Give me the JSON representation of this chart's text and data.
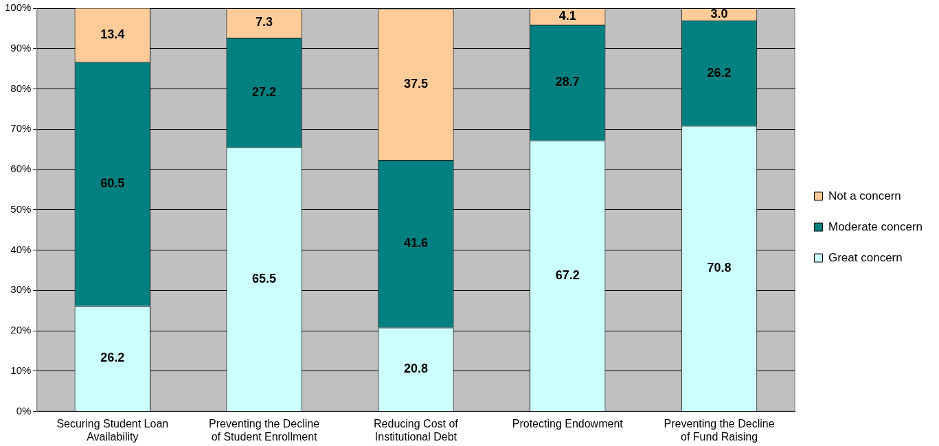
{
  "chart_data": {
    "type": "bar",
    "stacked": true,
    "categories": [
      "Securing Student Loan Availability",
      "Preventing the Decline of Student Enrollment",
      "Reducing Cost of Institutional Debt",
      "Protecting Endowment",
      "Preventing the Decline of Fund Raising"
    ],
    "series": [
      {
        "name": "Great concern",
        "color": "#ccffff",
        "values": [
          26.2,
          65.5,
          20.8,
          67.2,
          70.8
        ],
        "value_labels": [
          "26.2",
          "65.5",
          "20.8",
          "67.2",
          "70.8"
        ]
      },
      {
        "name": "Moderate concern",
        "color": "#008080",
        "values": [
          60.5,
          27.2,
          41.6,
          28.7,
          26.2
        ],
        "value_labels": [
          "60.5",
          "27.2",
          "41.6",
          "28.7",
          "26.2"
        ]
      },
      {
        "name": "Not a concern",
        "color": "#ffcc99",
        "values": [
          13.4,
          7.3,
          37.5,
          4.1,
          3.0
        ],
        "value_labels": [
          "13.4",
          "7.3",
          "37.5",
          "4.1",
          "3.0"
        ]
      }
    ],
    "ylim": [
      0,
      100
    ],
    "yticks": [
      {
        "value": 0,
        "label": "0%"
      },
      {
        "value": 10,
        "label": "10%"
      },
      {
        "value": 20,
        "label": "20%"
      },
      {
        "value": 30,
        "label": "30%"
      },
      {
        "value": 40,
        "label": "40%"
      },
      {
        "value": 50,
        "label": "50%"
      },
      {
        "value": 60,
        "label": "60%"
      },
      {
        "value": 70,
        "label": "70%"
      },
      {
        "value": 80,
        "label": "80%"
      },
      {
        "value": 90,
        "label": "90%"
      },
      {
        "value": 100,
        "label": "100%"
      }
    ],
    "grid": "y",
    "legend": "right"
  }
}
